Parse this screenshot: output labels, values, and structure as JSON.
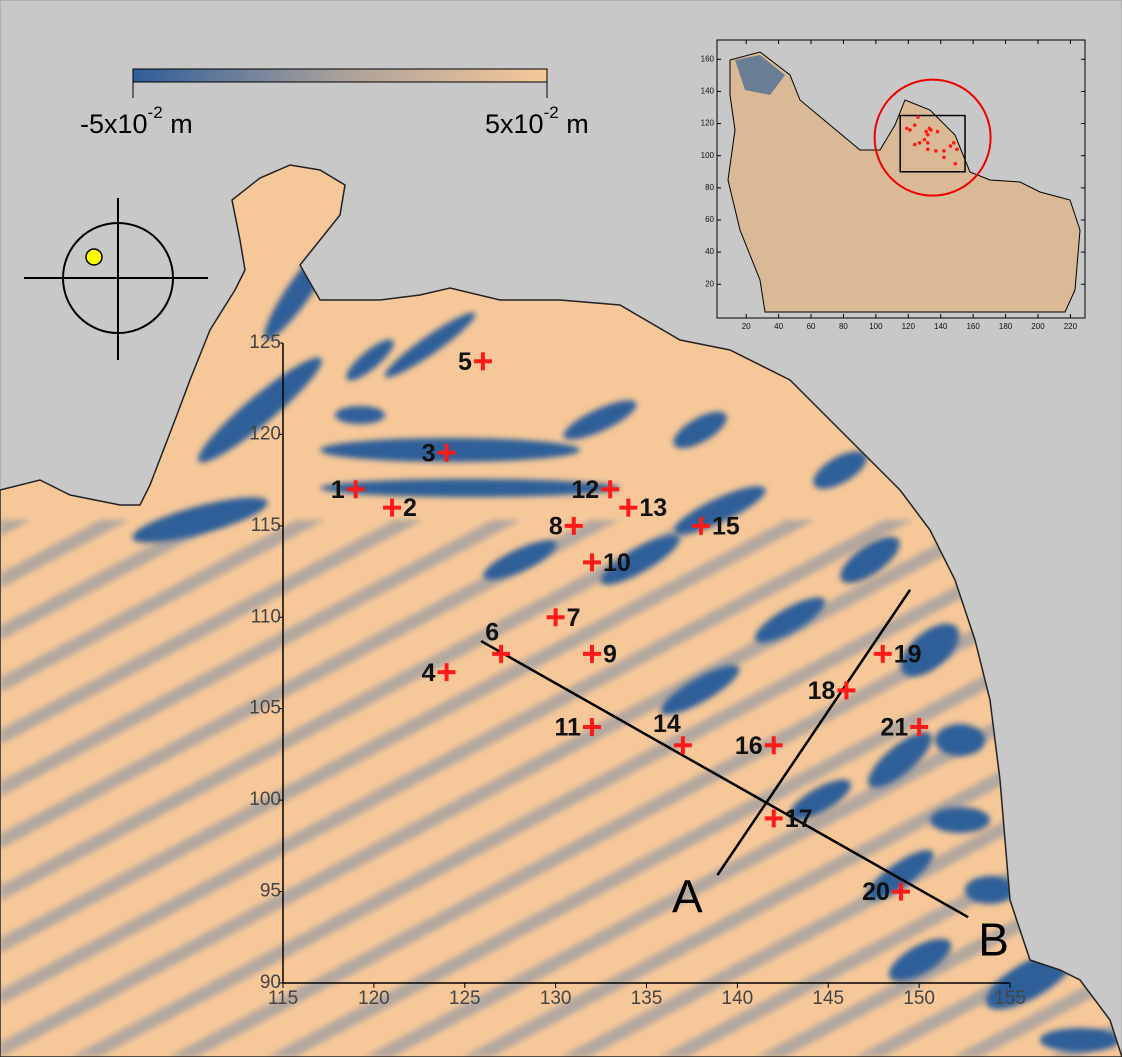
{
  "chart_data": {
    "type": "scatter",
    "xlim": [
      115,
      155
    ],
    "ylim": [
      90,
      125
    ],
    "xticks": [
      115,
      120,
      125,
      130,
      135,
      140,
      145,
      150,
      155
    ],
    "yticks": [
      90,
      95,
      100,
      105,
      110,
      115,
      120,
      125
    ],
    "color": "#ff1a1a",
    "labels": [
      "1",
      "2",
      "3",
      "4",
      "5",
      "6",
      "7",
      "8",
      "9",
      "10",
      "11",
      "12",
      "13",
      "14",
      "15",
      "16",
      "17",
      "18",
      "19",
      "20",
      "21"
    ],
    "x": [
      119,
      121,
      124,
      124,
      126,
      127,
      130,
      131,
      132,
      132,
      132,
      133,
      134,
      137,
      138,
      142,
      142,
      146,
      148,
      149,
      150
    ],
    "y": [
      117,
      116,
      119,
      107,
      124,
      108,
      110,
      115,
      108,
      113,
      104,
      117,
      116,
      103,
      115,
      103,
      99,
      106,
      108,
      95,
      104
    ],
    "transects": [
      {
        "label": "B",
        "x": [
          125.9,
          152.7
        ],
        "y": [
          108.7,
          93.6
        ]
      },
      {
        "label": "A",
        "x": [
          138.9,
          149.5
        ],
        "y": [
          95.9,
          111.5
        ]
      }
    ]
  },
  "colorbar": {
    "min": {
      "base": "-5x10",
      "exponent": "-2",
      "unit": "m"
    },
    "max": {
      "base": "5x10",
      "exponent": "-2",
      "unit": "m"
    }
  },
  "inset": {
    "xlim": [
      2,
      229
    ],
    "ylim": [
      -1,
      172
    ],
    "xticks": [
      20,
      40,
      60,
      80,
      100,
      120,
      140,
      160,
      180,
      200,
      220
    ],
    "yticks": [
      20,
      40,
      60,
      80,
      100,
      120,
      140,
      160
    ]
  }
}
